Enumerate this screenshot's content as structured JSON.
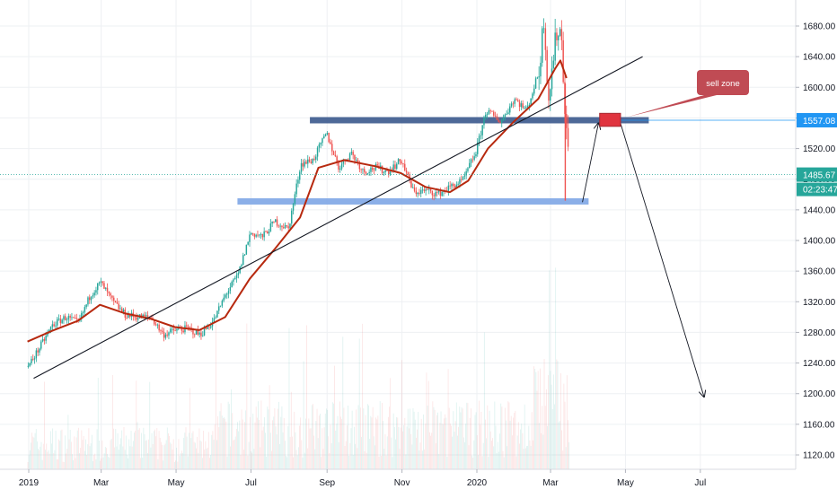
{
  "chart_data": {
    "type": "candlestick",
    "title": "",
    "x_labels": [
      "2019",
      "Mar",
      "May",
      "Jul",
      "Sep",
      "Nov",
      "2020",
      "Mar",
      "May",
      "Jul"
    ],
    "y_ticks": [
      "1120.00",
      "1160.00",
      "1200.00",
      "1240.00",
      "1280.00",
      "1320.00",
      "1360.00",
      "1400.00",
      "1440.00",
      "1480.00",
      "1520.00",
      "1560.00",
      "1600.00",
      "1640.00",
      "1680.00"
    ],
    "ylim": [
      1100,
      1700
    ],
    "grid": true,
    "price_series": [
      [
        "2018-12-31",
        1235
      ],
      [
        "2019-01-10",
        1262
      ],
      [
        "2019-01-20",
        1290
      ],
      [
        "2019-01-31",
        1300
      ],
      [
        "2019-02-10",
        1292
      ],
      [
        "2019-02-20",
        1330
      ],
      [
        "2019-02-28",
        1345
      ],
      [
        "2019-03-10",
        1320
      ],
      [
        "2019-03-20",
        1303
      ],
      [
        "2019-03-31",
        1300
      ],
      [
        "2019-04-10",
        1300
      ],
      [
        "2019-04-20",
        1277
      ],
      [
        "2019-04-30",
        1283
      ],
      [
        "2019-05-10",
        1285
      ],
      [
        "2019-05-20",
        1277
      ],
      [
        "2019-05-31",
        1295
      ],
      [
        "2019-06-10",
        1330
      ],
      [
        "2019-06-20",
        1355
      ],
      [
        "2019-06-30",
        1410
      ],
      [
        "2019-07-10",
        1405
      ],
      [
        "2019-07-20",
        1425
      ],
      [
        "2019-07-31",
        1415
      ],
      [
        "2019-08-10",
        1500
      ],
      [
        "2019-08-20",
        1505
      ],
      [
        "2019-08-31",
        1540
      ],
      [
        "2019-09-10",
        1495
      ],
      [
        "2019-09-20",
        1515
      ],
      [
        "2019-09-30",
        1490
      ],
      [
        "2019-10-10",
        1495
      ],
      [
        "2019-10-20",
        1490
      ],
      [
        "2019-10-31",
        1505
      ],
      [
        "2019-11-10",
        1463
      ],
      [
        "2019-11-20",
        1465
      ],
      [
        "2019-11-30",
        1461
      ],
      [
        "2019-12-10",
        1470
      ],
      [
        "2019-12-20",
        1478
      ],
      [
        "2019-12-31",
        1517
      ],
      [
        "2020-01-08",
        1570
      ],
      [
        "2020-01-20",
        1555
      ],
      [
        "2020-01-31",
        1585
      ],
      [
        "2020-02-10",
        1570
      ],
      [
        "2020-02-20",
        1620
      ],
      [
        "2020-02-24",
        1690
      ],
      [
        "2020-02-28",
        1585
      ],
      [
        "2020-03-05",
        1670
      ],
      [
        "2020-03-09",
        1675
      ],
      [
        "2020-03-12",
        1580
      ],
      [
        "2020-03-16",
        1485
      ]
    ],
    "moving_average": [
      [
        "2018-12-31",
        1268
      ],
      [
        "2019-01-20",
        1282
      ],
      [
        "2019-02-10",
        1295
      ],
      [
        "2019-02-28",
        1316
      ],
      [
        "2019-03-20",
        1305
      ],
      [
        "2019-04-10",
        1298
      ],
      [
        "2019-04-30",
        1287
      ],
      [
        "2019-05-20",
        1283
      ],
      [
        "2019-06-10",
        1300
      ],
      [
        "2019-06-30",
        1350
      ],
      [
        "2019-07-20",
        1388
      ],
      [
        "2019-08-10",
        1430
      ],
      [
        "2019-08-25",
        1495
      ],
      [
        "2019-09-15",
        1505
      ],
      [
        "2019-10-10",
        1497
      ],
      [
        "2019-10-31",
        1488
      ],
      [
        "2019-11-20",
        1470
      ],
      [
        "2019-12-10",
        1463
      ],
      [
        "2019-12-25",
        1478
      ],
      [
        "2020-01-10",
        1520
      ],
      [
        "2020-01-31",
        1555
      ],
      [
        "2020-02-20",
        1585
      ],
      [
        "2020-03-05",
        1625
      ],
      [
        "2020-03-09",
        1635
      ],
      [
        "2020-03-14",
        1612
      ]
    ],
    "trend_line": [
      [
        "2019-01-05",
        1220
      ],
      [
        "2020-05-15",
        1640
      ]
    ],
    "zones": [
      {
        "from": "2019-08-18",
        "to": "2020-05-20",
        "price": 1557
      },
      {
        "from": "2019-06-20",
        "to": "2020-04-01",
        "price": 1451
      }
    ],
    "price_tags": [
      {
        "value": "1557.08",
        "price": 1557,
        "color": "#2196f3"
      },
      {
        "value": "1485.67",
        "price": 1486,
        "color": "#26a69a"
      }
    ],
    "countdown": "02:23:47",
    "annotation": {
      "text": "sell zone",
      "color": "#c04b54"
    },
    "projection_arrows": [
      {
        "from": [
          "2020-03-27",
          1450
        ],
        "to": [
          "2020-04-09",
          1553
        ]
      },
      {
        "from": [
          "2020-04-27",
          1553
        ],
        "to": [
          "2020-07-04",
          1196
        ]
      }
    ],
    "sell_box": {
      "from": "2020-04-10",
      "to": "2020-04-27",
      "low": 1549,
      "high": 1566
    },
    "colors": {
      "up": "#26a69a",
      "down": "#ef5350",
      "ma": "#b7290f",
      "zone_upper": "#2f4f86",
      "zone_lower": "#7ea6e6",
      "grid": "#eef0f3",
      "axis_text": "#131722"
    }
  }
}
